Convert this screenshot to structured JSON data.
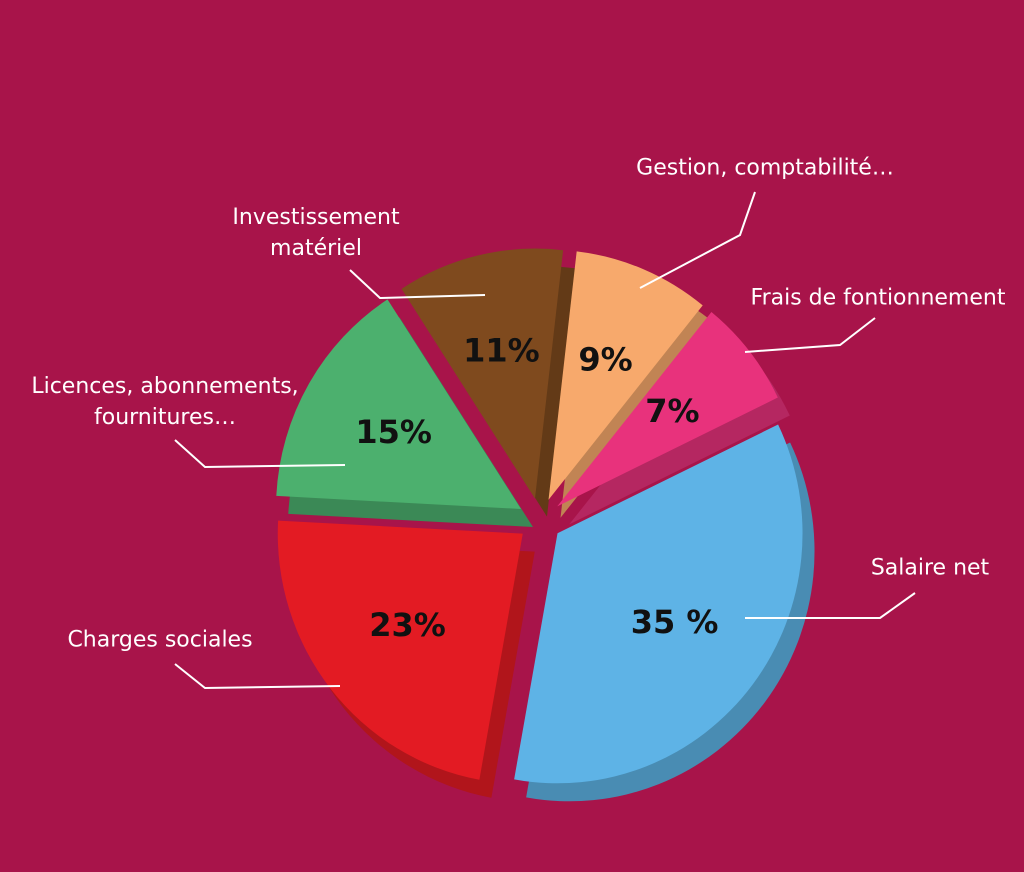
{
  "chart_data": {
    "type": "pie",
    "categories": [
      "Salaire net",
      "Charges sociales",
      "Licences, abonnements, fournitures…",
      "Investissement matériel",
      "Gestion, comptabilité…",
      "Frais de fontionnement"
    ],
    "values": [
      35,
      23,
      15,
      11,
      9,
      7
    ],
    "value_labels": [
      "35 %",
      "23%",
      "15%",
      "11%",
      "9%",
      "7%"
    ],
    "colors": [
      "#5eb3e6",
      "#e31b23",
      "#4cb06e",
      "#7f4a1e",
      "#f7a96c",
      "#e8327c"
    ]
  }
}
